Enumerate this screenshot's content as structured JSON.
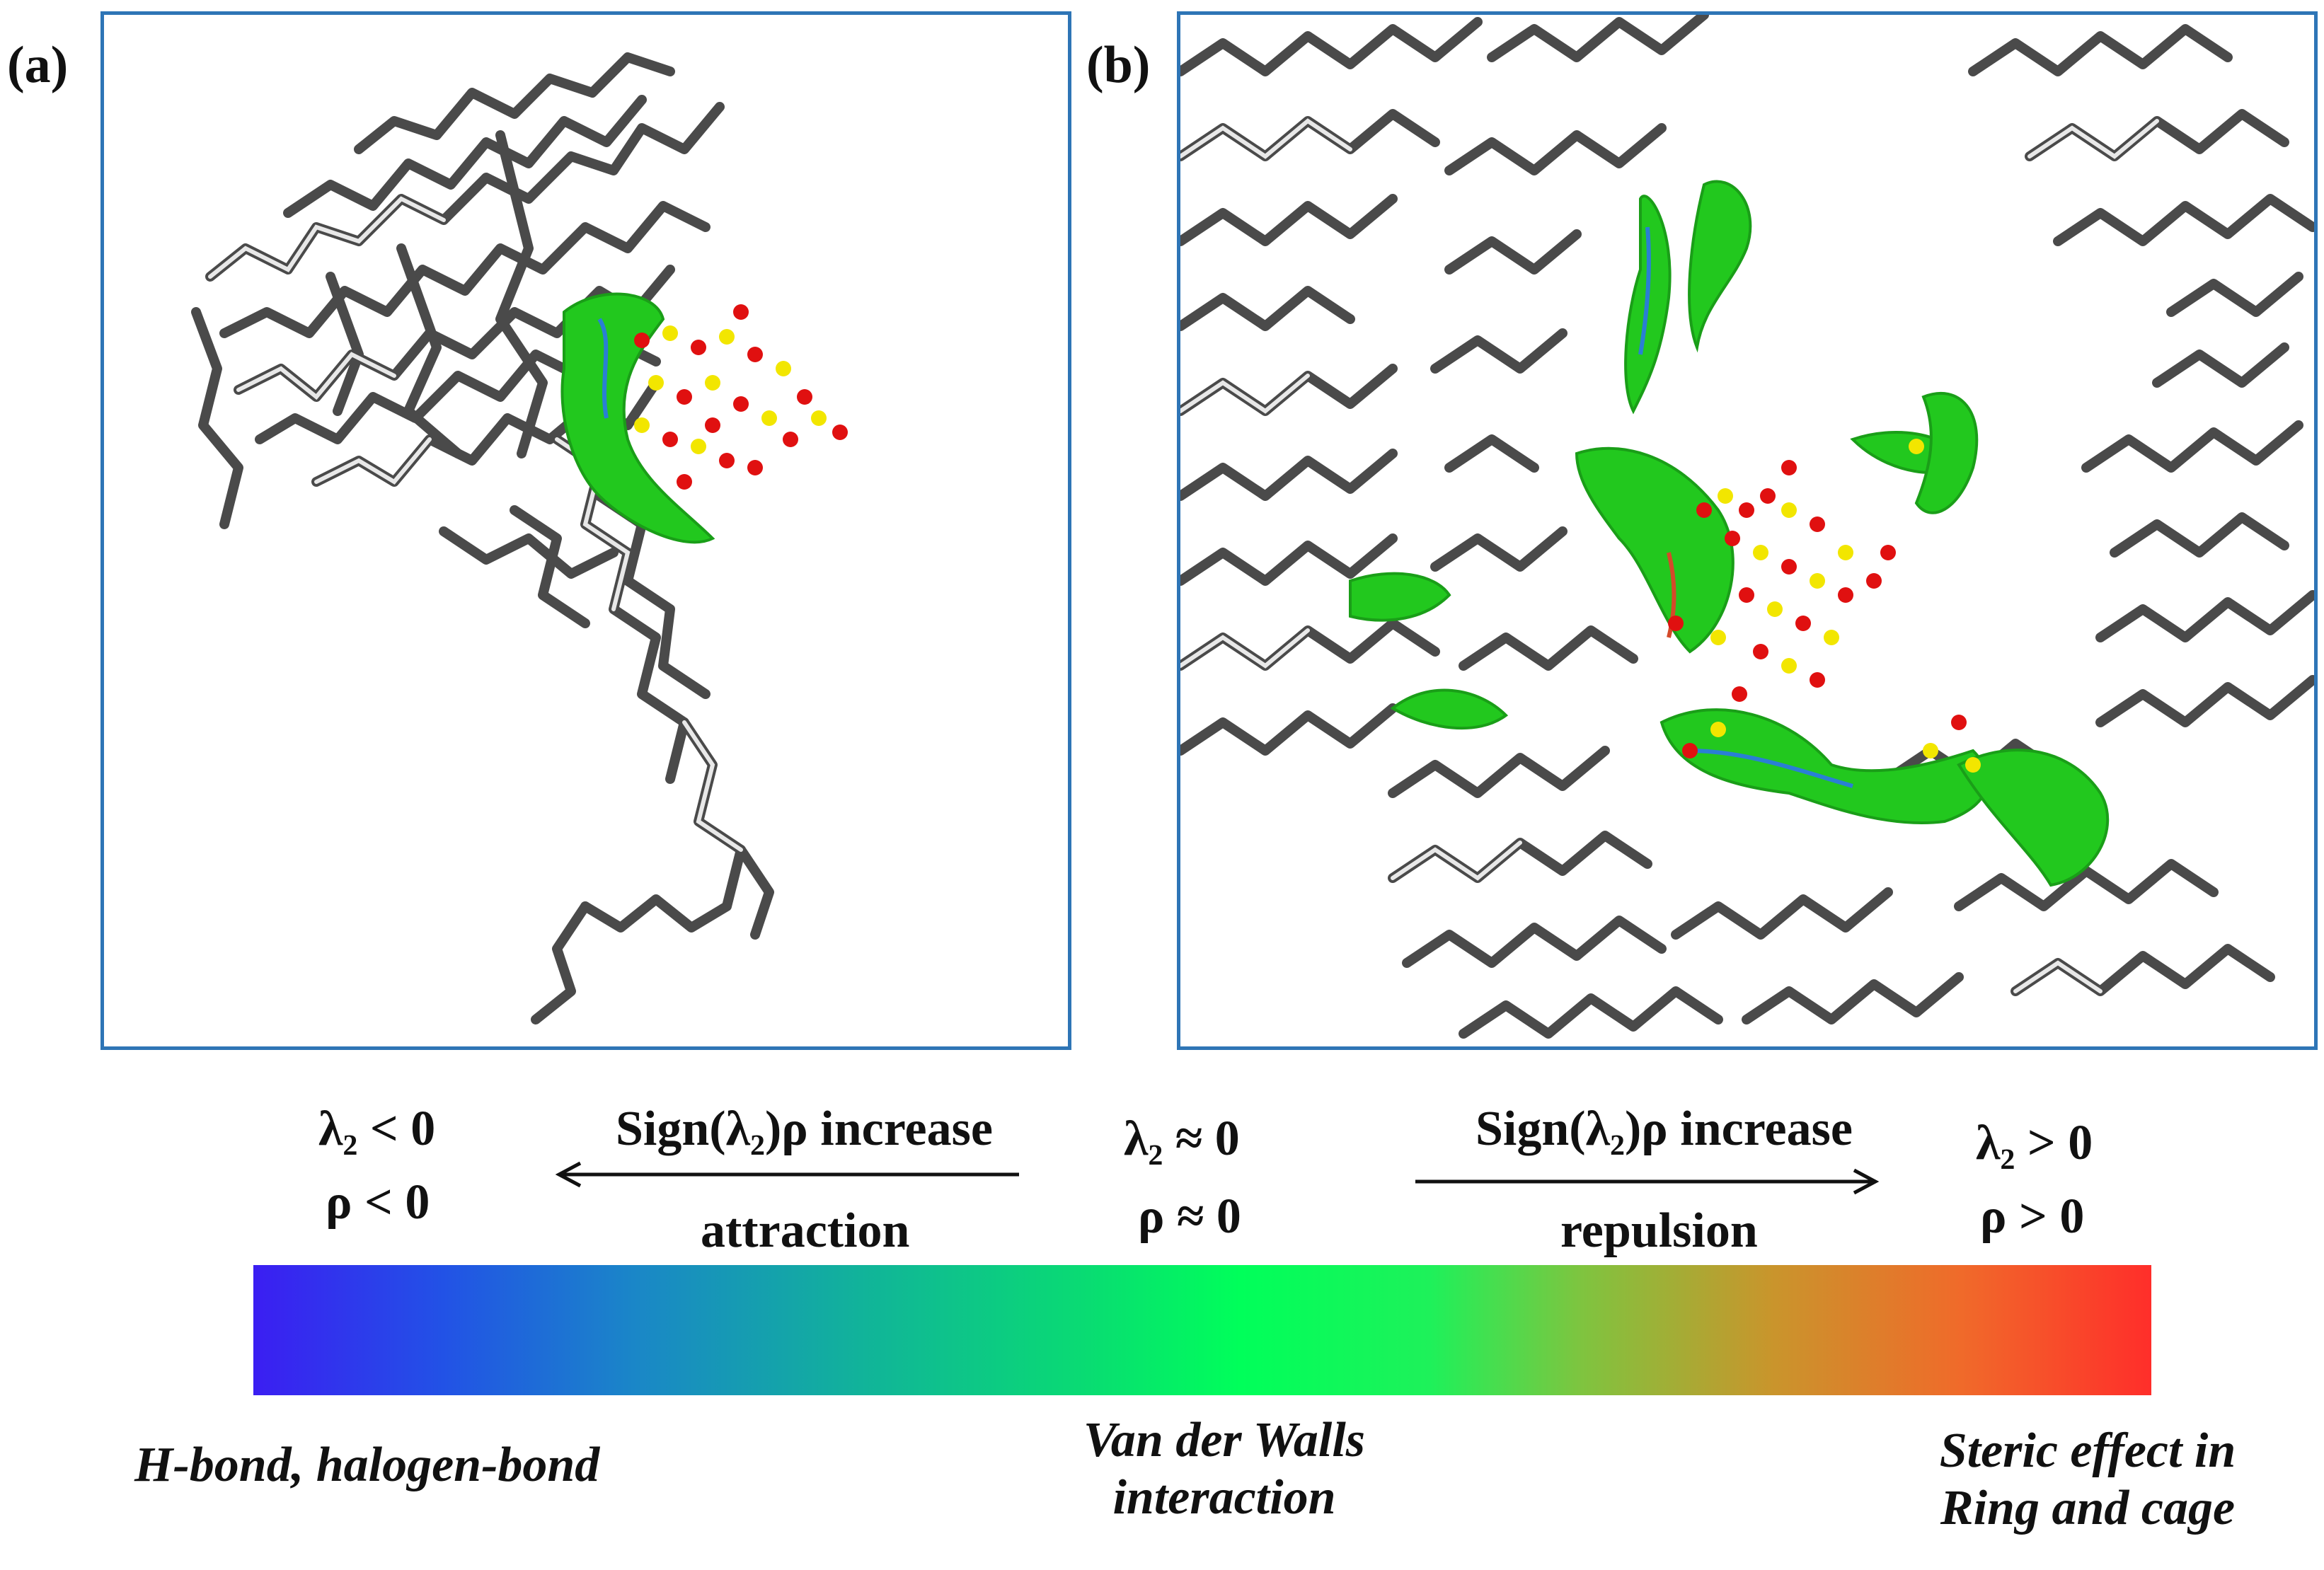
{
  "panels": [
    {
      "label": "(a)"
    },
    {
      "label": "(b)"
    }
  ],
  "legend": {
    "left_top": "λ₂ < 0",
    "left_bottom": "ρ < 0",
    "mid_top": "λ₂ ≈ 0",
    "mid_bottom": "ρ ≈ 0",
    "right_top": "λ₂ > 0",
    "right_bottom": "ρ > 0",
    "arrow_left_label": "Sign(λ₂)ρ increase",
    "arrow_left_sub": "attraction",
    "arrow_right_label": "Sign(λ₂)ρ increase",
    "arrow_right_sub": "repulsion"
  },
  "colorbar": {
    "colors": [
      "#3b1ef2",
      "#1a86c8",
      "#00ff5a",
      "#c9952c",
      "#ff2e2a"
    ]
  },
  "captions": {
    "left": "H-bond, halogen-bond",
    "middle": "Van der Walls\ninteraction",
    "right": "Steric effect in\nRing and cage"
  },
  "molecule_colors": {
    "carbon": "#4a4a4a",
    "hydrogen": "#e8e8e8",
    "oxygen": "#e01010",
    "sulfur": "#f2e600",
    "surface": "#22c81e"
  }
}
